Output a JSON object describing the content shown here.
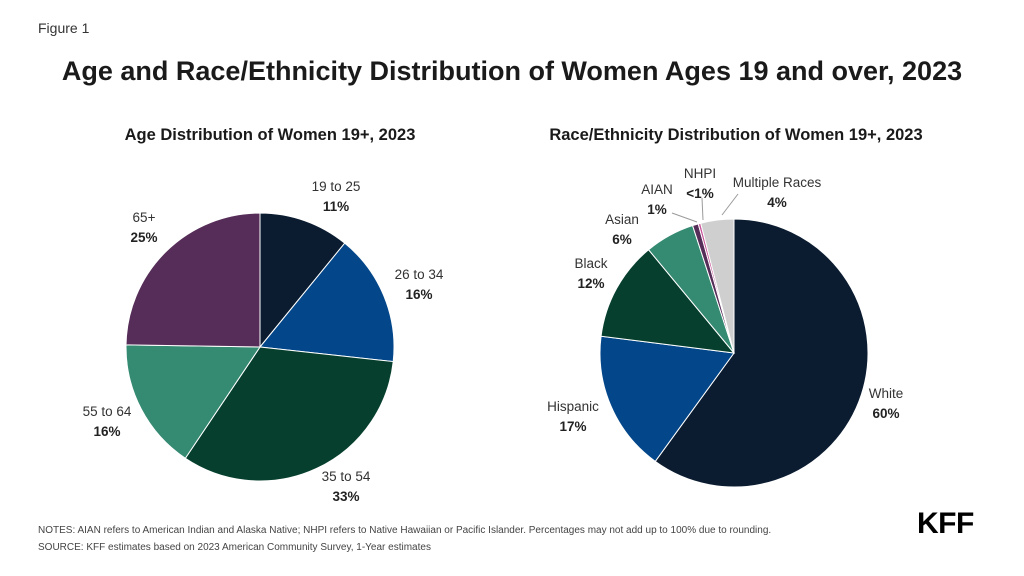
{
  "figure_label": "Figure 1",
  "title": "Age and Race/Ethnicity Distribution of Women Ages 19 and over, 2023",
  "chart_data": [
    {
      "type": "pie",
      "title": "Age Distribution of Women 19+, 2023",
      "slices": [
        {
          "label": "19 to 25",
          "value": 11,
          "display": "11%",
          "color": "#0b1c30"
        },
        {
          "label": "26 to 34",
          "value": 16,
          "display": "16%",
          "color": "#03478a"
        },
        {
          "label": "35 to 54",
          "value": 33,
          "display": "33%",
          "color": "#063f2d"
        },
        {
          "label": "55 to 64",
          "value": 16,
          "display": "16%",
          "color": "#358a72"
        },
        {
          "label": "65+",
          "value": 25,
          "display": "25%",
          "color": "#562d58"
        }
      ]
    },
    {
      "type": "pie",
      "title": "Race/Ethnicity Distribution of Women 19+, 2023",
      "slices": [
        {
          "label": "White",
          "value": 60,
          "display": "60%",
          "color": "#0b1c30"
        },
        {
          "label": "Hispanic",
          "value": 17,
          "display": "17%",
          "color": "#03478a"
        },
        {
          "label": "Black",
          "value": 12,
          "display": "12%",
          "color": "#063f2d"
        },
        {
          "label": "Asian",
          "value": 6,
          "display": "6%",
          "color": "#358a72"
        },
        {
          "label": "AIAN",
          "value": 0.7,
          "display": "1%",
          "color": "#562d58"
        },
        {
          "label": "NHPI",
          "value": 0.3,
          "display": "<1%",
          "color": "#c8559a"
        },
        {
          "label": "Multiple Races",
          "value": 4,
          "display": "4%",
          "color": "#cfcfcf"
        }
      ]
    }
  ],
  "notes": "NOTES: AIAN refers to American Indian and Alaska Native; NHPI refers to Native Hawaiian or Pacific Islander. Percentages may not add up to 100% due to rounding.",
  "source": "SOURCE: KFF estimates based on 2023 American Community Survey, 1-Year estimates",
  "logo": "KFF"
}
